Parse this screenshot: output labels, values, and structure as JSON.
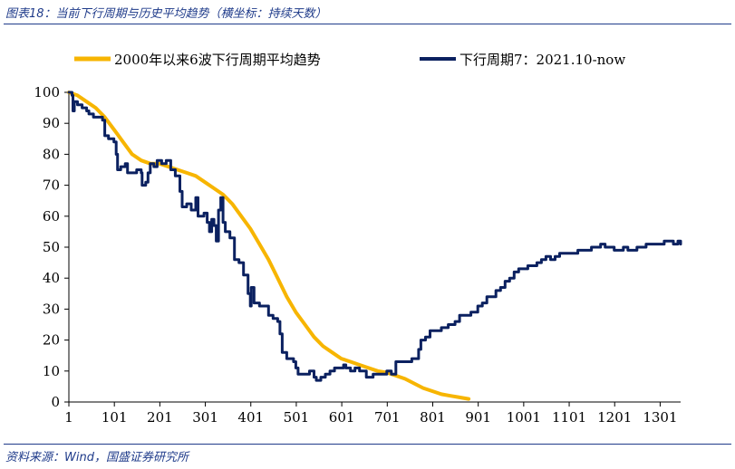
{
  "figure": {
    "title": "图表18：当前下行周期与历史平均趋势（横坐标：持续天数）",
    "source": "资料来源：Wind，国盛证券研究所"
  },
  "colors": {
    "avg": "#F7B500",
    "cur": "#0B2160",
    "accent": "#1f3b8a"
  },
  "chart_data": {
    "type": "line",
    "title": "",
    "xlabel": "",
    "ylabel": "",
    "xlim": [
      1,
      1346
    ],
    "ylim": [
      0,
      100
    ],
    "x_ticks": [
      1,
      101,
      201,
      301,
      401,
      501,
      601,
      701,
      801,
      901,
      1001,
      1101,
      1201,
      1301
    ],
    "y_ticks": [
      0,
      10,
      20,
      30,
      40,
      50,
      60,
      70,
      80,
      90,
      100
    ],
    "legend_position": "top",
    "series": [
      {
        "name": "2000年以来6波下行周期平均趋势",
        "color": "#F7B500",
        "step": false,
        "points": [
          [
            1,
            100
          ],
          [
            20,
            99
          ],
          [
            40,
            97
          ],
          [
            60,
            95
          ],
          [
            80,
            92
          ],
          [
            100,
            88
          ],
          [
            120,
            84
          ],
          [
            140,
            80
          ],
          [
            160,
            78
          ],
          [
            180,
            77
          ],
          [
            200,
            77
          ],
          [
            220,
            76
          ],
          [
            240,
            75
          ],
          [
            260,
            74
          ],
          [
            280,
            73
          ],
          [
            300,
            71
          ],
          [
            320,
            69
          ],
          [
            340,
            67
          ],
          [
            360,
            64
          ],
          [
            380,
            60
          ],
          [
            400,
            56
          ],
          [
            420,
            51
          ],
          [
            440,
            46
          ],
          [
            460,
            40
          ],
          [
            480,
            34
          ],
          [
            500,
            29
          ],
          [
            520,
            25
          ],
          [
            540,
            21
          ],
          [
            560,
            18
          ],
          [
            580,
            16
          ],
          [
            600,
            14
          ],
          [
            620,
            13
          ],
          [
            640,
            12
          ],
          [
            660,
            11
          ],
          [
            680,
            10
          ],
          [
            700,
            9.5
          ],
          [
            720,
            8.5
          ],
          [
            740,
            7.5
          ],
          [
            760,
            6
          ],
          [
            780,
            4.5
          ],
          [
            800,
            3.5
          ],
          [
            820,
            2.5
          ],
          [
            840,
            2
          ],
          [
            860,
            1.5
          ],
          [
            880,
            1
          ]
        ]
      },
      {
        "name": "下行周期7：2021.10-now",
        "color": "#0B2160",
        "step": true,
        "points": [
          [
            1,
            100
          ],
          [
            8,
            99
          ],
          [
            10,
            94
          ],
          [
            13,
            97
          ],
          [
            20,
            96
          ],
          [
            30,
            95
          ],
          [
            40,
            94
          ],
          [
            45,
            93
          ],
          [
            55,
            92
          ],
          [
            75,
            91
          ],
          [
            80,
            86
          ],
          [
            88,
            85
          ],
          [
            100,
            84
          ],
          [
            105,
            80
          ],
          [
            108,
            75
          ],
          [
            115,
            76
          ],
          [
            125,
            77
          ],
          [
            130,
            74
          ],
          [
            140,
            74
          ],
          [
            150,
            75
          ],
          [
            160,
            74
          ],
          [
            162,
            70
          ],
          [
            170,
            71
          ],
          [
            175,
            74
          ],
          [
            180,
            77
          ],
          [
            188,
            76
          ],
          [
            195,
            78
          ],
          [
            205,
            77
          ],
          [
            215,
            78
          ],
          [
            225,
            75
          ],
          [
            235,
            73
          ],
          [
            245,
            68
          ],
          [
            250,
            63
          ],
          [
            260,
            64
          ],
          [
            270,
            62
          ],
          [
            280,
            66
          ],
          [
            285,
            60
          ],
          [
            298,
            61
          ],
          [
            305,
            58
          ],
          [
            310,
            55
          ],
          [
            315,
            59
          ],
          [
            320,
            57
          ],
          [
            325,
            52
          ],
          [
            330,
            62
          ],
          [
            335,
            66
          ],
          [
            340,
            58
          ],
          [
            345,
            55
          ],
          [
            355,
            53
          ],
          [
            365,
            46
          ],
          [
            375,
            45
          ],
          [
            385,
            41
          ],
          [
            395,
            35
          ],
          [
            400,
            31
          ],
          [
            402,
            37
          ],
          [
            408,
            32
          ],
          [
            420,
            31
          ],
          [
            430,
            31
          ],
          [
            440,
            28
          ],
          [
            450,
            27
          ],
          [
            460,
            26
          ],
          [
            465,
            22
          ],
          [
            470,
            16
          ],
          [
            480,
            14
          ],
          [
            495,
            13
          ],
          [
            500,
            11
          ],
          [
            505,
            9
          ],
          [
            520,
            9
          ],
          [
            530,
            10
          ],
          [
            540,
            8
          ],
          [
            545,
            7
          ],
          [
            555,
            8
          ],
          [
            565,
            9
          ],
          [
            575,
            10
          ],
          [
            585,
            11
          ],
          [
            595,
            11
          ],
          [
            605,
            12
          ],
          [
            610,
            11
          ],
          [
            620,
            10
          ],
          [
            630,
            11
          ],
          [
            640,
            10
          ],
          [
            650,
            10
          ],
          [
            655,
            8
          ],
          [
            670,
            9
          ],
          [
            685,
            9
          ],
          [
            700,
            10
          ],
          [
            710,
            9
          ],
          [
            720,
            13
          ],
          [
            730,
            13
          ],
          [
            745,
            13
          ],
          [
            755,
            14
          ],
          [
            770,
            17
          ],
          [
            775,
            20
          ],
          [
            785,
            21
          ],
          [
            795,
            23
          ],
          [
            805,
            23
          ],
          [
            820,
            24
          ],
          [
            835,
            25
          ],
          [
            850,
            26
          ],
          [
            860,
            28
          ],
          [
            875,
            28
          ],
          [
            885,
            29
          ],
          [
            900,
            31
          ],
          [
            910,
            32
          ],
          [
            920,
            34
          ],
          [
            930,
            34
          ],
          [
            940,
            36
          ],
          [
            950,
            37
          ],
          [
            960,
            39
          ],
          [
            970,
            40
          ],
          [
            980,
            42
          ],
          [
            990,
            43
          ],
          [
            1000,
            43
          ],
          [
            1010,
            44
          ],
          [
            1020,
            44
          ],
          [
            1030,
            45
          ],
          [
            1040,
            46
          ],
          [
            1050,
            47
          ],
          [
            1060,
            46
          ],
          [
            1070,
            47
          ],
          [
            1080,
            48
          ],
          [
            1090,
            48
          ],
          [
            1100,
            48
          ],
          [
            1110,
            48
          ],
          [
            1120,
            49
          ],
          [
            1130,
            49
          ],
          [
            1140,
            49
          ],
          [
            1150,
            50
          ],
          [
            1160,
            50
          ],
          [
            1170,
            51
          ],
          [
            1180,
            50
          ],
          [
            1190,
            50
          ],
          [
            1200,
            49
          ],
          [
            1210,
            49
          ],
          [
            1220,
            50
          ],
          [
            1230,
            49
          ],
          [
            1240,
            49
          ],
          [
            1250,
            50
          ],
          [
            1260,
            50
          ],
          [
            1270,
            51
          ],
          [
            1280,
            51
          ],
          [
            1290,
            51
          ],
          [
            1300,
            51
          ],
          [
            1310,
            52
          ],
          [
            1320,
            52
          ],
          [
            1330,
            51
          ],
          [
            1340,
            52
          ],
          [
            1346,
            51
          ]
        ]
      }
    ]
  }
}
